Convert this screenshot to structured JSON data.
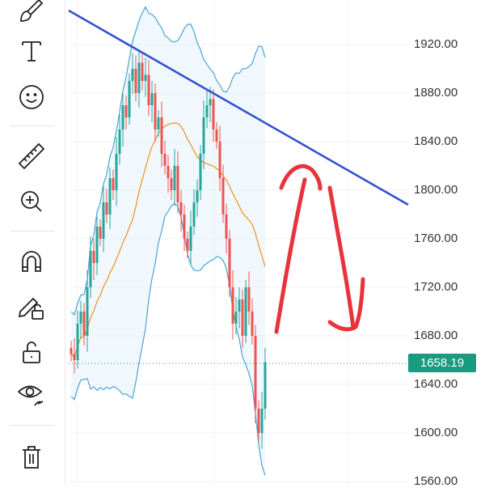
{
  "toolbar": {
    "tools": [
      {
        "name": "brush",
        "icon": "brush-icon"
      },
      {
        "name": "text",
        "icon": "text-icon"
      },
      {
        "name": "emoji",
        "icon": "smiley-icon"
      },
      {
        "name": "measure",
        "icon": "ruler-icon"
      },
      {
        "name": "zoom-in",
        "icon": "zoom-in-icon"
      },
      {
        "name": "magnet",
        "icon": "magnet-icon"
      },
      {
        "name": "stay-in-drawing-mode",
        "icon": "pencil-lock-icon"
      },
      {
        "name": "lock-drawings",
        "icon": "unlock-icon"
      },
      {
        "name": "hide-drawings",
        "icon": "eye-icon"
      },
      {
        "name": "remove-drawings",
        "icon": "trash-icon"
      }
    ]
  },
  "colors": {
    "up": "#26a69a",
    "down": "#ef5350",
    "band": "#4aa3d8",
    "ma": "#f0962e",
    "trendline": "#2f4fd0",
    "drawing": "#e8333c",
    "last_price": "#1a9a7e"
  },
  "chart_data": {
    "type": "candlestick",
    "y_ticks": [
      "1920.00",
      "1880.00",
      "1840.00",
      "1800.00",
      "1760.00",
      "1720.00",
      "1680.00",
      "1640.00",
      "1600.00",
      "1560.00"
    ],
    "ylim": [
      1560,
      1920
    ],
    "last_price": "1658.19",
    "closes": [
      1665,
      1660,
      1690,
      1700,
      1680,
      1720,
      1750,
      1740,
      1770,
      1760,
      1790,
      1780,
      1810,
      1800,
      1830,
      1850,
      1870,
      1860,
      1890,
      1900,
      1880,
      1905,
      1890,
      1895,
      1870,
      1880,
      1850,
      1860,
      1830,
      1820,
      1810,
      1800,
      1820,
      1790,
      1780,
      1760,
      1750,
      1770,
      1790,
      1800,
      1830,
      1860,
      1870,
      1875,
      1850,
      1840,
      1810,
      1780,
      1760,
      1720,
      1690,
      1700,
      1710,
      1680,
      1720,
      1700,
      1680,
      1620,
      1600,
      1620,
      1658.19
    ],
    "indicators": [
      "Bollinger Bands",
      "Moving Average"
    ],
    "trendline": {
      "from_price": 1948,
      "to_price": 1788
    }
  }
}
